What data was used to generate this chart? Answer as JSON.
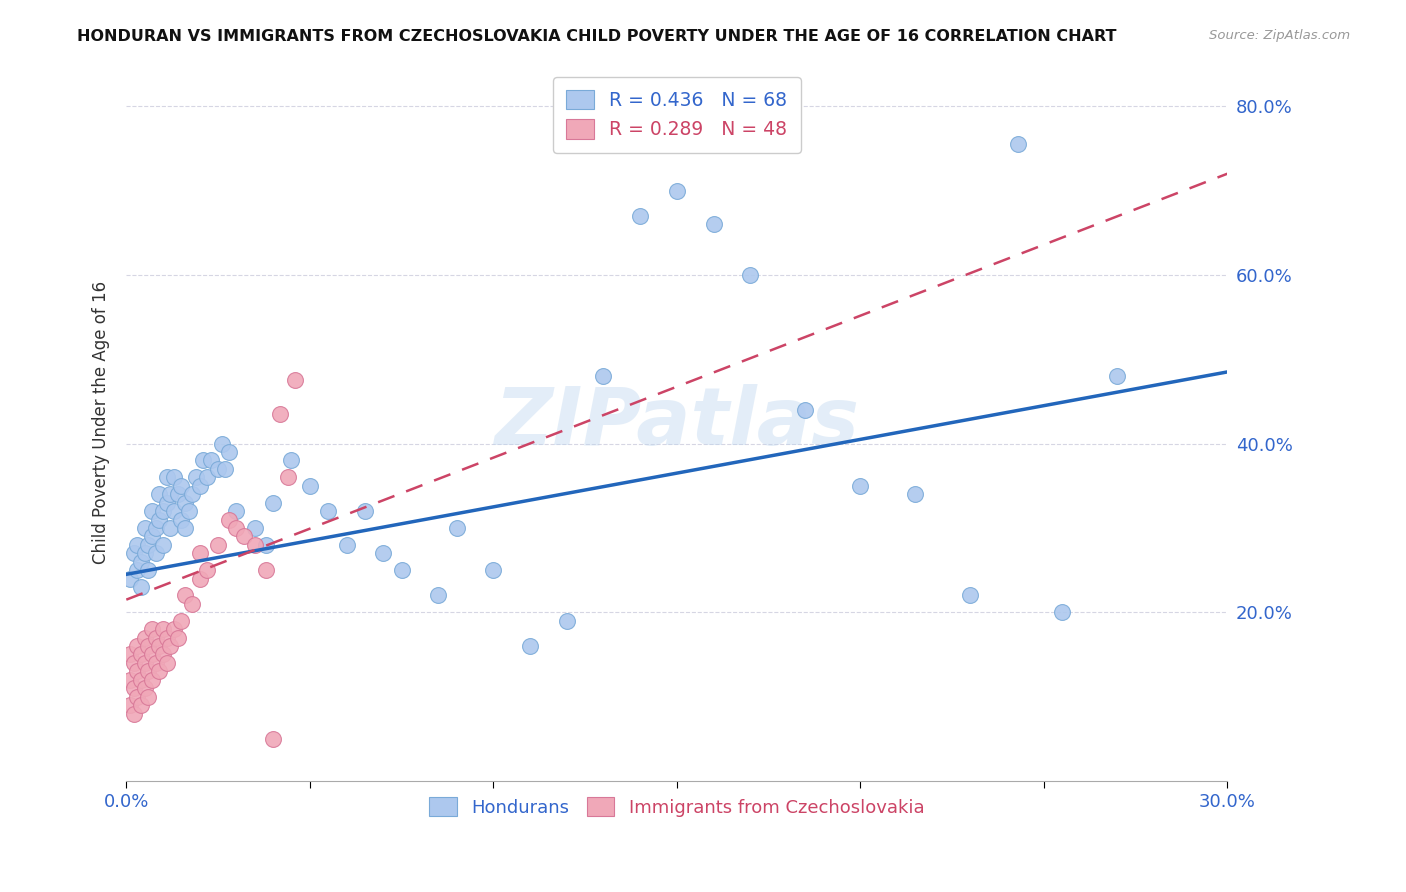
{
  "title": "HONDURAN VS IMMIGRANTS FROM CZECHOSLOVAKIA CHILD POVERTY UNDER THE AGE OF 16 CORRELATION CHART",
  "source": "Source: ZipAtlas.com",
  "ylabel": "Child Poverty Under the Age of 16",
  "watermark": "ZIPatlas",
  "blue_color": "#adc8ee",
  "blue_edge": "#7aaad8",
  "pink_color": "#f0a8b8",
  "pink_edge": "#d87898",
  "blue_line_color": "#2266bb",
  "pink_line_color": "#cc4466",
  "xlim": [
    0.0,
    0.3
  ],
  "ylim": [
    0.0,
    0.85
  ],
  "figsize": [
    14.06,
    8.92
  ],
  "dpi": 100,
  "blue_x": [
    0.001,
    0.002,
    0.003,
    0.003,
    0.004,
    0.004,
    0.005,
    0.005,
    0.006,
    0.006,
    0.007,
    0.007,
    0.008,
    0.008,
    0.009,
    0.009,
    0.01,
    0.01,
    0.011,
    0.011,
    0.012,
    0.012,
    0.013,
    0.013,
    0.014,
    0.015,
    0.015,
    0.016,
    0.016,
    0.017,
    0.018,
    0.019,
    0.02,
    0.021,
    0.022,
    0.023,
    0.025,
    0.026,
    0.027,
    0.028,
    0.03,
    0.035,
    0.038,
    0.04,
    0.045,
    0.05,
    0.055,
    0.06,
    0.065,
    0.07,
    0.075,
    0.085,
    0.09,
    0.1,
    0.11,
    0.12,
    0.13,
    0.14,
    0.15,
    0.16,
    0.17,
    0.185,
    0.2,
    0.215,
    0.23,
    0.243,
    0.255,
    0.27
  ],
  "blue_y": [
    0.24,
    0.27,
    0.25,
    0.28,
    0.23,
    0.26,
    0.27,
    0.3,
    0.25,
    0.28,
    0.29,
    0.32,
    0.27,
    0.3,
    0.31,
    0.34,
    0.28,
    0.32,
    0.33,
    0.36,
    0.3,
    0.34,
    0.32,
    0.36,
    0.34,
    0.31,
    0.35,
    0.3,
    0.33,
    0.32,
    0.34,
    0.36,
    0.35,
    0.38,
    0.36,
    0.38,
    0.37,
    0.4,
    0.37,
    0.39,
    0.32,
    0.3,
    0.28,
    0.33,
    0.38,
    0.35,
    0.32,
    0.28,
    0.32,
    0.27,
    0.25,
    0.22,
    0.3,
    0.25,
    0.16,
    0.19,
    0.48,
    0.67,
    0.7,
    0.66,
    0.6,
    0.44,
    0.35,
    0.34,
    0.22,
    0.755,
    0.2,
    0.48
  ],
  "pink_x": [
    0.001,
    0.001,
    0.001,
    0.002,
    0.002,
    0.002,
    0.003,
    0.003,
    0.003,
    0.004,
    0.004,
    0.004,
    0.005,
    0.005,
    0.005,
    0.006,
    0.006,
    0.006,
    0.007,
    0.007,
    0.007,
    0.008,
    0.008,
    0.009,
    0.009,
    0.01,
    0.01,
    0.011,
    0.011,
    0.012,
    0.013,
    0.014,
    0.015,
    0.016,
    0.018,
    0.02,
    0.02,
    0.022,
    0.025,
    0.028,
    0.03,
    0.032,
    0.035,
    0.038,
    0.04,
    0.042,
    0.044,
    0.046
  ],
  "pink_y": [
    0.09,
    0.12,
    0.15,
    0.08,
    0.11,
    0.14,
    0.1,
    0.13,
    0.16,
    0.09,
    0.12,
    0.15,
    0.11,
    0.14,
    0.17,
    0.1,
    0.13,
    0.16,
    0.12,
    0.15,
    0.18,
    0.14,
    0.17,
    0.13,
    0.16,
    0.15,
    0.18,
    0.14,
    0.17,
    0.16,
    0.18,
    0.17,
    0.19,
    0.22,
    0.21,
    0.24,
    0.27,
    0.25,
    0.28,
    0.31,
    0.3,
    0.29,
    0.28,
    0.25,
    0.05,
    0.435,
    0.36,
    0.475
  ],
  "blue_line_x0": 0.0,
  "blue_line_y0": 0.245,
  "blue_line_x1": 0.3,
  "blue_line_y1": 0.485,
  "pink_line_x0": 0.0,
  "pink_line_y0": 0.215,
  "pink_line_x1": 0.3,
  "pink_line_y1": 0.72
}
